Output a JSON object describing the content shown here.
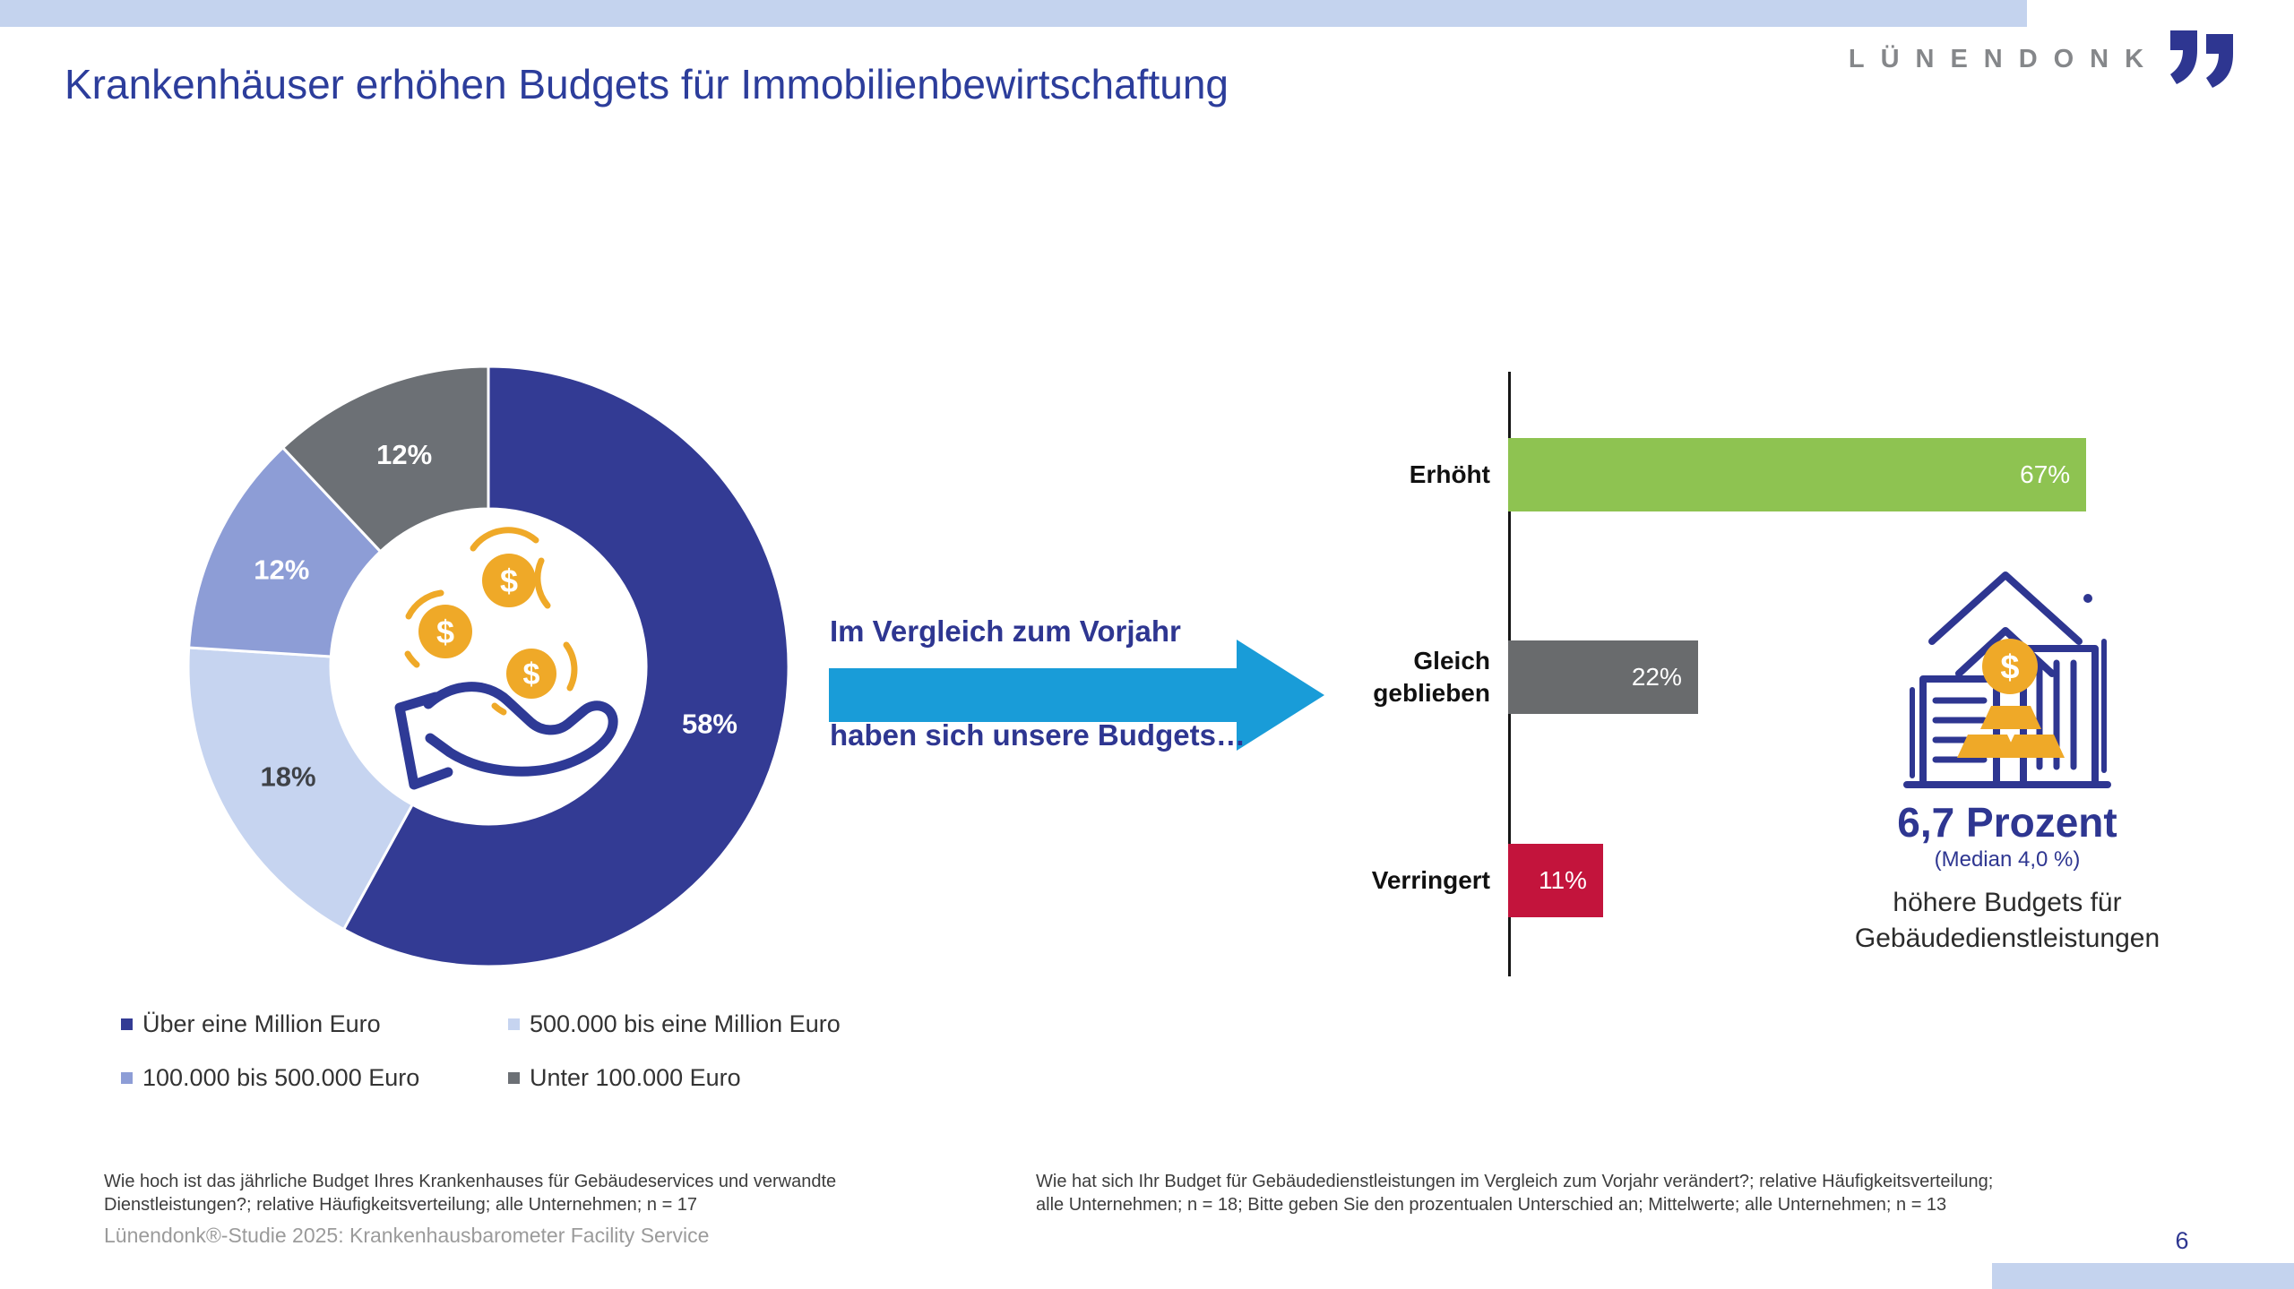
{
  "header": {
    "title": "Krankenhäuser erhöhen Budgets für Immobilienbewirtschaftung",
    "logo_text": "LÜNENDONK"
  },
  "theme": {
    "accent_navy": "#2e3691",
    "title_color": "#2c3d9b",
    "band_blue": "#c4d3ee",
    "arrow_blue": "#199cd8",
    "logo_gray": "#85878a",
    "coin_gold": "#efa928",
    "footnote_gray": "#9b9b9b"
  },
  "chart_data": [
    {
      "type": "pie",
      "subtype": "donut",
      "value_format": "percent",
      "start_angle_deg": 0,
      "direction": "clockwise",
      "legend_position": "bottom",
      "slices": [
        {
          "label": "Über eine Million Euro",
          "value": 58,
          "color": "#333b94",
          "label_color": "#ffffff"
        },
        {
          "label": "500.000 bis eine Million Euro",
          "value": 18,
          "color": "#c6d4f0",
          "label_color": "#3f4247"
        },
        {
          "label": "100.000 bis 500.000 Euro",
          "value": 12,
          "color": "#8d9dd6",
          "label_color": "#ffffff"
        },
        {
          "label": "Unter 100.000 Euro",
          "value": 12,
          "color": "#6c7075",
          "label_color": "#ffffff"
        }
      ]
    },
    {
      "type": "bar",
      "orientation": "horizontal",
      "categories": [
        "Erhöht",
        "Gleich geblieben",
        "Verringert"
      ],
      "values": [
        67,
        22,
        11
      ],
      "value_labels": [
        "67%",
        "22%",
        "11%"
      ],
      "colors": [
        "#8ec351",
        "#696b6d",
        "#c3143c"
      ],
      "xlim": [
        0,
        100
      ],
      "grid": false
    }
  ],
  "arrow": {
    "line1": "Im Vergleich zum Vorjahr",
    "line2": "haben sich unsere Budgets…"
  },
  "stat": {
    "value": "6,7 Prozent",
    "median": "(Median 4,0 %)",
    "description": "höhere Budgets für\nGebäudedienstleistungen"
  },
  "footer": {
    "left_note": "Wie hoch ist das jährliche Budget Ihres Krankenhauses für Gebäudeservices und verwandte\nDienstleistungen?; relative Häufigkeitsverteilung; alle Unternehmen; n = 17",
    "right_note": "Wie hat sich Ihr Budget für Gebäudedienstleistungen im Vergleich zum Vorjahr verändert?; relative Häufigkeitsverteilung;\nalle Unternehmen; n = 18; Bitte geben Sie den prozentualen Unterschied an; Mittelwerte; alle Unternehmen; n = 13",
    "source": "Lünendonk®-Studie 2025: Krankenhausbarometer Facility Service",
    "page_number": "6"
  }
}
